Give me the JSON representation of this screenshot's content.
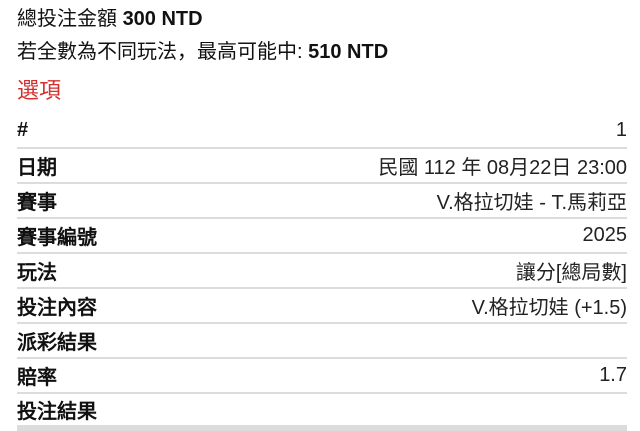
{
  "summary": {
    "total_label": "總投注金額",
    "total_value": "300 NTD",
    "max_label": "若全數為不同玩法，最高可能中:",
    "max_value": "510 NTD"
  },
  "section_title": "選項",
  "colors": {
    "section_title": "#d32f2f",
    "divider": "#dcdcdc"
  },
  "rows": [
    {
      "label": "#",
      "value": "1"
    },
    {
      "label": "日期",
      "value": "民國 112 年 08月22日 23:00"
    },
    {
      "label": "賽事",
      "value": "V.格拉切娃 - T.馬莉亞"
    },
    {
      "label": "賽事編號",
      "value": "2025"
    },
    {
      "label": "玩法",
      "value": "讓分[總局數]"
    },
    {
      "label": "投注內容",
      "value": "V.格拉切娃 (+1.5)"
    },
    {
      "label": "派彩結果",
      "value": ""
    },
    {
      "label": "賠率",
      "value": "1.7"
    },
    {
      "label": "投注結果",
      "value": ""
    }
  ]
}
